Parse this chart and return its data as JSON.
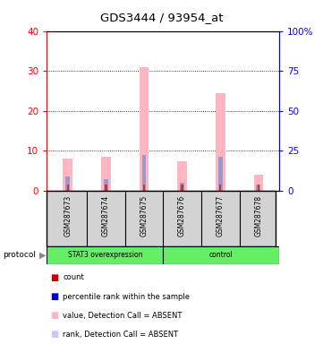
{
  "title": "GDS3444 / 93954_at",
  "samples": [
    "GSM287673",
    "GSM287674",
    "GSM287675",
    "GSM287676",
    "GSM287677",
    "GSM287678"
  ],
  "pink_values": [
    8,
    8.5,
    31,
    7.5,
    24.5,
    4
  ],
  "blue_values": [
    3.5,
    3.0,
    9.0,
    2.0,
    8.5,
    1.5
  ],
  "red_values": [
    1.5,
    1.5,
    1.5,
    1.5,
    1.5,
    1.5
  ],
  "ylim_left": [
    0,
    40
  ],
  "ylim_right": [
    0,
    100
  ],
  "yticks_left": [
    0,
    10,
    20,
    30,
    40
  ],
  "yticks_right": [
    0,
    25,
    50,
    75,
    100
  ],
  "ytick_labels_right": [
    "0",
    "25",
    "50",
    "75",
    "100%"
  ],
  "left_axis_color": "red",
  "right_axis_color": "blue",
  "legend_items": [
    {
      "color": "#cc0000",
      "label": "count"
    },
    {
      "color": "#0000cc",
      "label": "percentile rank within the sample"
    },
    {
      "color": "#ffb6c1",
      "label": "value, Detection Call = ABSENT"
    },
    {
      "color": "#c8c8ff",
      "label": "rank, Detection Call = ABSENT"
    }
  ],
  "pink_color": "#ffb6c1",
  "blue_bar_color": "#9999cc",
  "red_bar_color": "#cc3333",
  "green_color": "#66ee66",
  "gray_color": "#d3d3d3",
  "stat3_label": "STAT3 overexpression",
  "control_label": "control",
  "protocol_label": "protocol"
}
